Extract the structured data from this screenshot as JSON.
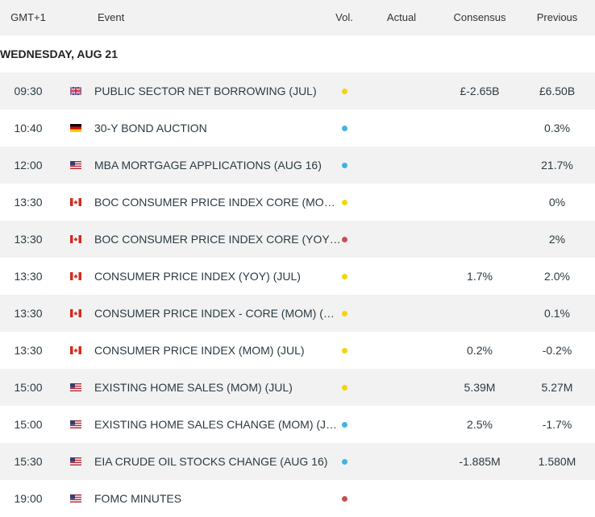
{
  "header": {
    "columns": [
      "GMT+1",
      "Event",
      "Vol.",
      "Actual",
      "Consensus",
      "Previous"
    ]
  },
  "date": "WEDNESDAY, AUG 21",
  "rows": [
    {
      "time": "09:30",
      "event": "PUBLIC SECTOR NET BORROWING (JUL)",
      "consensus": "£-2.65B",
      "previous": "£6.50B"
    },
    {
      "time": "10:40",
      "event": "30-Y BOND AUCTION",
      "previous": "0.3%"
    },
    {
      "time": "12:00",
      "event": "MBA MORTGAGE APPLICATIONS (AUG 16)",
      "previous": "21.7%"
    },
    {
      "time": "13:30",
      "event": "BOC CONSUMER PRICE INDEX CORE (MO…",
      "previous": "0%"
    },
    {
      "time": "13:30",
      "event": "BOC CONSUMER PRICE INDEX CORE (YOY…",
      "previous": "2%"
    },
    {
      "time": "13:30",
      "event": "CONSUMER PRICE INDEX (YOY) (JUL)",
      "consensus": "1.7%",
      "previous": "2.0%"
    },
    {
      "time": "13:30",
      "event": "CONSUMER PRICE INDEX - CORE (MOM) (…",
      "previous": "0.1%"
    },
    {
      "time": "13:30",
      "event": "CONSUMER PRICE INDEX (MOM) (JUL)",
      "consensus": "0.2%",
      "previous": "-0.2%"
    },
    {
      "time": "15:00",
      "event": "EXISTING HOME SALES (MOM) (JUL)",
      "consensus": "5.39M",
      "previous": "5.27M"
    },
    {
      "time": "15:00",
      "event": "EXISTING HOME SALES CHANGE (MOM) (J…",
      "consensus": "2.5%",
      "previous": "-1.7%"
    },
    {
      "time": "15:30",
      "event": "EIA CRUDE OIL STOCKS CHANGE (AUG 16)",
      "consensus": "-1.885M",
      "previous": "1.580M"
    },
    {
      "time": "19:00",
      "event": "FOMC MINUTES"
    }
  ]
}
